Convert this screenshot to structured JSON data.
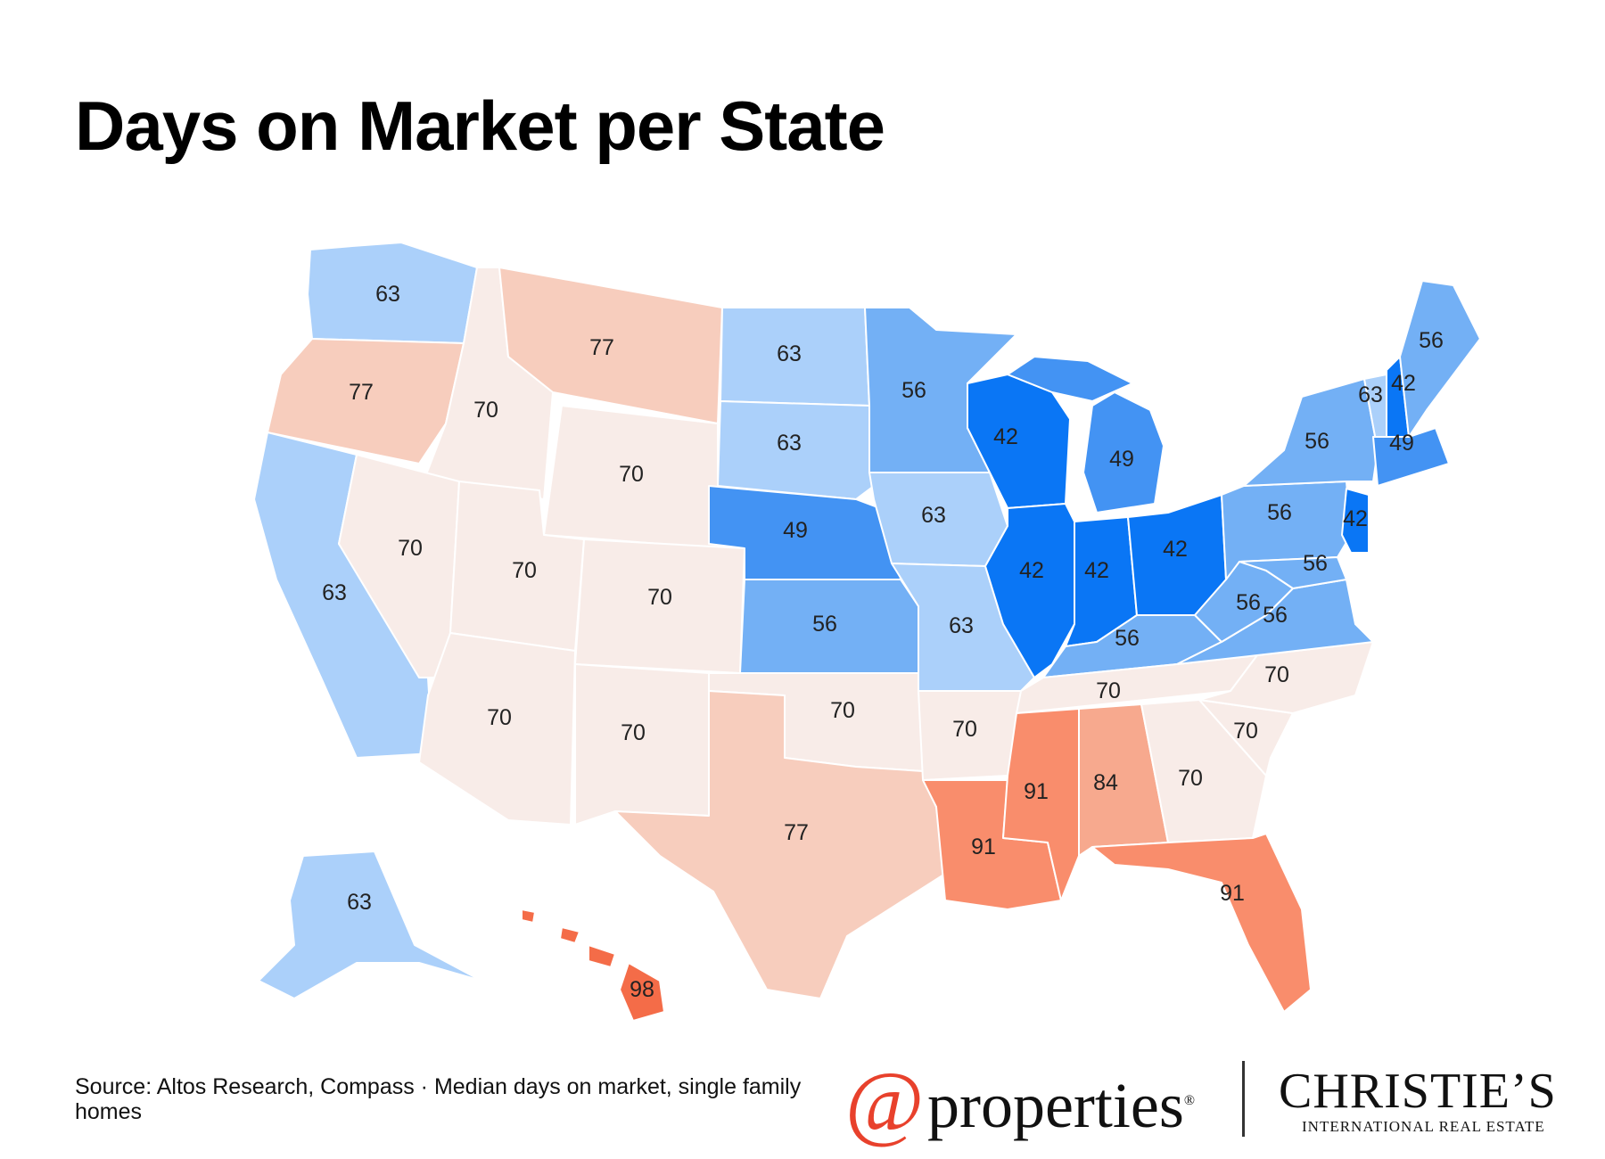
{
  "title": "Days on Market per State",
  "source": "Source: Altos Research, Compass · Median days on market, single family homes",
  "logos": {
    "at": "@",
    "properties": "properties",
    "reg": "®",
    "christies": "CHRISTIE’S",
    "intl": "INTERNATIONAL REAL ESTATE"
  },
  "colors": {
    "c42": "#0a76f5",
    "c49": "#4393f3",
    "c56": "#73b0f5",
    "c63": "#abd0fa",
    "c70": "#f8ece8",
    "c77": "#f7cdbd",
    "c84": "#f7a98e",
    "c91": "#f98d6c",
    "c98": "#f46c48"
  },
  "states": {
    "WA": "63",
    "OR": "77",
    "CA": "63",
    "ID": "70",
    "NV": "70",
    "MT": "77",
    "WY": "70",
    "UT": "70",
    "AZ": "70",
    "CO": "70",
    "NM": "70",
    "ND": "63",
    "SD": "63",
    "NE": "49",
    "KS": "56",
    "OK": "70",
    "TX": "77",
    "MN": "56",
    "IA": "63",
    "MO": "63",
    "AR": "70",
    "LA": "91",
    "WI": "42",
    "IL": "42",
    "MI": "49",
    "IN": "42",
    "OH": "42",
    "KY": "56",
    "TN": "70",
    "MS": "91",
    "AL": "84",
    "GA": "70",
    "FL": "91",
    "SC": "70",
    "NC": "70",
    "VA": "56",
    "WV": "56",
    "PA": "56",
    "NY": "56",
    "ME": "56",
    "VT": "63",
    "NH": "42",
    "MA": "49",
    "NJ": "42",
    "MD": "56",
    "AK": "63",
    "HI": "98"
  }
}
